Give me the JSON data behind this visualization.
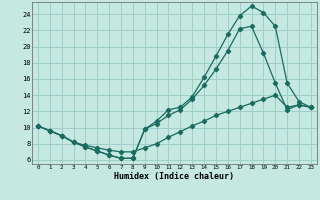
{
  "xlabel": "Humidex (Indice chaleur)",
  "background_color": "#c5e8e0",
  "grid_color": "#9ecfc8",
  "line_color": "#1a6b60",
  "xlim": [
    -0.5,
    23.5
  ],
  "ylim": [
    5.5,
    25.5
  ],
  "xticks": [
    0,
    1,
    2,
    3,
    4,
    5,
    6,
    7,
    8,
    9,
    10,
    11,
    12,
    13,
    14,
    15,
    16,
    17,
    18,
    19,
    20,
    21,
    22,
    23
  ],
  "yticks": [
    6,
    8,
    10,
    12,
    14,
    16,
    18,
    20,
    22,
    24
  ],
  "line1_x": [
    0,
    1,
    2,
    3,
    4,
    5,
    6,
    7,
    8,
    9,
    10,
    11,
    12,
    13,
    14,
    15,
    16,
    17,
    18,
    19,
    20,
    21,
    22,
    23
  ],
  "line1_y": [
    10.2,
    9.6,
    9.0,
    8.2,
    7.6,
    7.1,
    6.6,
    6.2,
    6.2,
    9.8,
    10.8,
    12.2,
    12.5,
    13.8,
    16.2,
    18.8,
    21.5,
    23.8,
    25.0,
    24.2,
    22.5,
    15.5,
    13.2,
    12.5
  ],
  "line2_x": [
    0,
    1,
    2,
    3,
    4,
    5,
    6,
    7,
    8,
    9,
    10,
    11,
    12,
    13,
    14,
    15,
    16,
    17,
    18,
    19,
    20,
    21,
    22,
    23
  ],
  "line2_y": [
    10.2,
    9.6,
    9.0,
    8.2,
    7.6,
    7.1,
    6.6,
    6.2,
    6.2,
    9.8,
    10.5,
    11.5,
    12.2,
    13.5,
    15.2,
    17.2,
    19.5,
    22.2,
    22.5,
    19.2,
    15.5,
    12.2,
    12.8,
    12.5
  ],
  "line3_x": [
    0,
    1,
    2,
    3,
    4,
    5,
    6,
    7,
    8,
    9,
    10,
    11,
    12,
    13,
    14,
    15,
    16,
    17,
    18,
    19,
    20,
    21,
    22,
    23
  ],
  "line3_y": [
    10.2,
    9.6,
    9.0,
    8.2,
    7.8,
    7.5,
    7.2,
    7.0,
    7.0,
    7.5,
    8.0,
    8.8,
    9.5,
    10.2,
    10.8,
    11.5,
    12.0,
    12.5,
    13.0,
    13.5,
    14.0,
    12.5,
    12.8,
    12.5
  ]
}
